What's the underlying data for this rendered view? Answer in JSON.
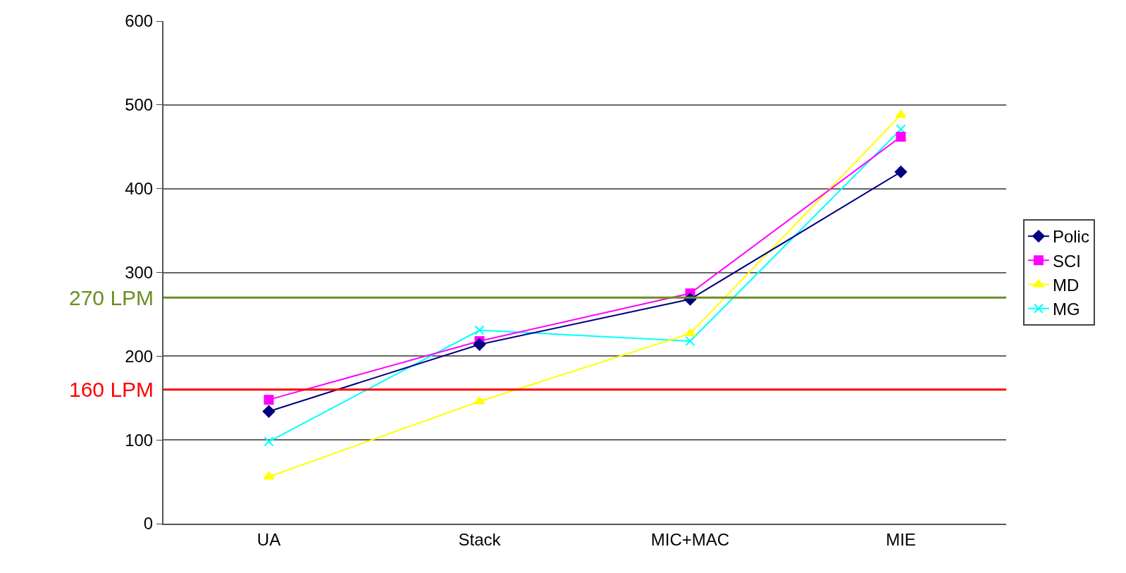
{
  "chart_data": {
    "type": "line",
    "categories": [
      "UA",
      "Stack",
      "MIC+MAC",
      "MIE"
    ],
    "series": [
      {
        "name": "Polic",
        "color": "#000080",
        "marker": "diamond",
        "values": [
          134,
          214,
          268,
          420
        ]
      },
      {
        "name": "SCI",
        "color": "#ff00ff",
        "marker": "square",
        "values": [
          148,
          218,
          275,
          462
        ]
      },
      {
        "name": "MD",
        "color": "#ffff00",
        "marker": "triangle",
        "values": [
          56,
          146,
          227,
          488
        ]
      },
      {
        "name": "MG",
        "color": "#00ffff",
        "marker": "cross",
        "values": [
          98,
          231,
          218,
          471
        ]
      }
    ],
    "ylim": [
      0,
      600
    ],
    "yticks": [
      0,
      100,
      200,
      300,
      400,
      500,
      600
    ],
    "grid": "y",
    "legend": "right",
    "ref_lines": [
      {
        "axis": "y",
        "value": 270,
        "label": "270 LPM",
        "color": "#6b8e23"
      },
      {
        "axis": "y",
        "value": 160,
        "label": "160 LPM",
        "color": "#ff0000"
      }
    ]
  }
}
